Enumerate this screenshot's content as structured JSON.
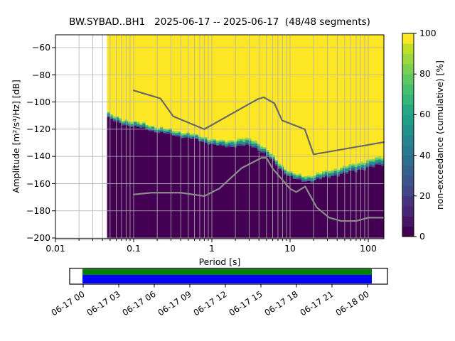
{
  "title": "BW.SYBAD..BH1   2025-06-17 -- 2025-06-17  (48/48 segments)",
  "axes": {
    "xlabel": "Period [s]",
    "ylabel": "Amplitude [m²/s⁴/Hz] [dB]",
    "x_tick_labels": [
      "0.01",
      "0.1",
      "1",
      "10",
      "100"
    ],
    "y_tick_labels": [
      "−60",
      "−80",
      "−100",
      "−120",
      "−140",
      "−160",
      "−180",
      "−200"
    ]
  },
  "colorbar": {
    "label": "non-exceedance (cumulative) [%]",
    "tick_labels": [
      "100",
      "80",
      "60",
      "40",
      "20",
      "0"
    ]
  },
  "timeline": {
    "tick_labels": [
      "06-17 00",
      "06-17 03",
      "06-17 06",
      "06-17 09",
      "06-17 12",
      "06-17 15",
      "06-17 18",
      "06-17 21",
      "06-18 00"
    ],
    "coverage_top_color": "#008000",
    "coverage_bottom_color": "#0000ff"
  },
  "chart_data": {
    "type": "heatmap",
    "title": "BW.SYBAD..BH1   2025-06-17 -- 2025-06-17  (48/48 segments)",
    "xlabel": "Period [s]",
    "ylabel": "Amplitude [m2/s4/Hz] [dB]",
    "x_scale": "log",
    "xlim": [
      0.01,
      158.5
    ],
    "ylim": [
      -200.5,
      -50.5
    ],
    "x_ticks": [
      0.01,
      0.1,
      1,
      10,
      100
    ],
    "y_ticks": [
      -60,
      -80,
      -100,
      -120,
      -140,
      -160,
      -180,
      -200
    ],
    "grid": true,
    "grid_color": "#b0b0b0",
    "segments_used": 48,
    "segments_total": 48,
    "data_period_min": 0.0457,
    "data_period_max": 158.5,
    "nonexceedance_boundary_db": [
      [
        0.046,
        -109.0
      ],
      [
        0.052,
        -111.5
      ],
      [
        0.062,
        -113.5
      ],
      [
        0.075,
        -115.0
      ],
      [
        0.09,
        -115.8
      ],
      [
        0.11,
        -116.8
      ],
      [
        0.14,
        -118.2
      ],
      [
        0.18,
        -119.8
      ],
      [
        0.25,
        -121.6
      ],
      [
        0.35,
        -123.2
      ],
      [
        0.5,
        -125.0
      ],
      [
        0.7,
        -126.8
      ],
      [
        1.0,
        -129.5
      ],
      [
        1.35,
        -131.0
      ],
      [
        1.8,
        -130.6
      ],
      [
        2.7,
        -129.8
      ],
      [
        3.4,
        -130.6
      ],
      [
        4.2,
        -133.5
      ],
      [
        5.5,
        -139.5
      ],
      [
        7.0,
        -146.0
      ],
      [
        9.0,
        -151.5
      ],
      [
        11.0,
        -154.5
      ],
      [
        14.0,
        -156.5
      ],
      [
        18.0,
        -156.5
      ],
      [
        25.0,
        -154.5
      ],
      [
        32.0,
        -153.0
      ],
      [
        45.0,
        -150.8
      ],
      [
        63.0,
        -149.0
      ],
      [
        90.0,
        -146.5
      ],
      [
        120.0,
        -144.8
      ],
      [
        158.0,
        -143.3
      ]
    ],
    "noise_models": {
      "nhnm": [
        [
          0.1,
          -91.5
        ],
        [
          0.22,
          -97.4
        ],
        [
          0.32,
          -110.5
        ],
        [
          0.8,
          -120.0
        ],
        [
          3.8,
          -98.1
        ],
        [
          4.6,
          -96.5
        ],
        [
          6.3,
          -101.0
        ],
        [
          7.9,
          -113.5
        ],
        [
          15.4,
          -120.0
        ],
        [
          20.0,
          -138.5
        ],
        [
          158.5,
          -129.5
        ]
      ],
      "nlnm": [
        [
          0.1,
          -168.0
        ],
        [
          0.17,
          -166.7
        ],
        [
          0.4,
          -166.7
        ],
        [
          0.8,
          -169.2
        ],
        [
          1.24,
          -163.7
        ],
        [
          2.4,
          -148.6
        ],
        [
          4.3,
          -141.1
        ],
        [
          5.0,
          -141.1
        ],
        [
          6.0,
          -149.0
        ],
        [
          10.0,
          -163.8
        ],
        [
          12.0,
          -166.2
        ],
        [
          15.6,
          -162.1
        ],
        [
          21.9,
          -177.5
        ],
        [
          31.6,
          -185.0
        ],
        [
          45.0,
          -187.5
        ],
        [
          70.0,
          -187.5
        ],
        [
          101.0,
          -185.0
        ],
        [
          158.5,
          -185.1
        ]
      ],
      "color_high": "#686868",
      "color_low": "#8c8c8c"
    },
    "colorbar": {
      "label": "non-exceedance (cumulative) [%]",
      "range": [
        0,
        100
      ],
      "ticks": [
        0,
        20,
        40,
        60,
        80,
        100
      ],
      "colormap": "viridis"
    },
    "colormap_stops": [
      "#440154",
      "#481467",
      "#482576",
      "#46327e",
      "#404688",
      "#3b528b",
      "#35608d",
      "#2f6d8e",
      "#2a798e",
      "#25848e",
      "#21918c",
      "#1e9d89",
      "#24a884",
      "#32b67a",
      "#44bf70",
      "#5ec962",
      "#7ad151",
      "#9bd93c",
      "#bddf26",
      "#fde725"
    ],
    "heat_colors": {
      "high": "#fde725",
      "band": [
        "#9bd93c",
        "#5ec962",
        "#21918c",
        "#3b528b"
      ],
      "low": "#440154"
    }
  }
}
